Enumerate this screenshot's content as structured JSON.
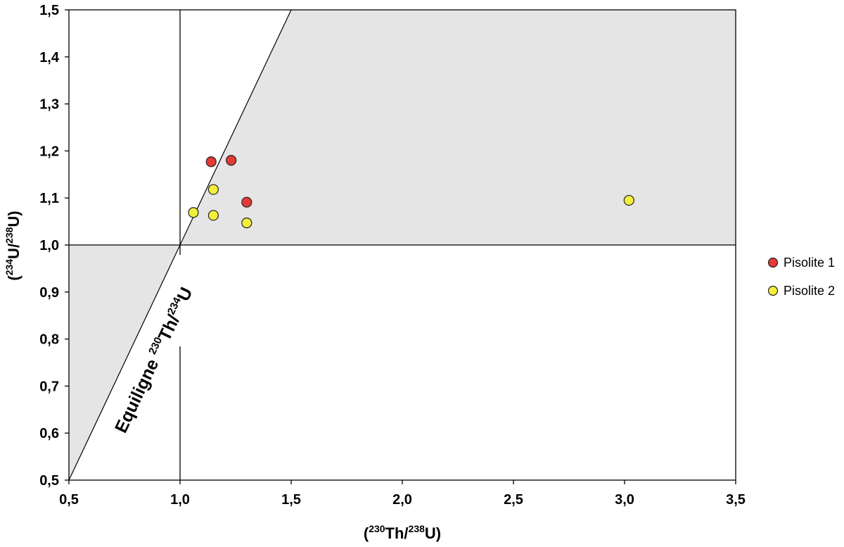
{
  "chart_data": {
    "type": "scatter",
    "xlim": [
      0.5,
      3.5
    ],
    "ylim": [
      0.5,
      1.5
    ],
    "x_ticks": [
      0.5,
      1.0,
      1.5,
      2.0,
      2.5,
      3.0,
      3.5
    ],
    "y_ticks": [
      0.5,
      0.6,
      0.7,
      0.8,
      0.9,
      1.0,
      1.1,
      1.2,
      1.3,
      1.4,
      1.5
    ],
    "x_tick_labels": [
      "0,5",
      "1,0",
      "1,5",
      "2,0",
      "2,5",
      "3,0",
      "3,5"
    ],
    "y_tick_labels": [
      "0,5",
      "0,6",
      "0,7",
      "0,8",
      "0,9",
      "1,0",
      "1,1",
      "1,2",
      "1,3",
      "1,4",
      "1,5"
    ],
    "xlabel": {
      "open": "(",
      "sup1": "230",
      "mid": "Th/",
      "sup2": "238",
      "close": "U)"
    },
    "ylabel": {
      "open": "(",
      "sup1": "234",
      "mid": "U/",
      "sup2": "238",
      "close": "U)"
    },
    "grid": false,
    "legend_position": "right",
    "shaded_regions_color": "#e5e5e5",
    "reference_lines": {
      "x": 1.0,
      "y": 1.0,
      "equiline_slope": 1
    },
    "annotation": {
      "pre": "Equiligne ",
      "sup1": "230",
      "mid": "Th/",
      "sup2": "234",
      "post": "U"
    },
    "series": [
      {
        "name": "Pisolite 1",
        "color": "#e23b34",
        "points": [
          {
            "x": 1.14,
            "y": 1.177
          },
          {
            "x": 1.23,
            "y": 1.18
          },
          {
            "x": 1.3,
            "y": 1.091
          }
        ]
      },
      {
        "name": "Pisolite 2",
        "color": "#f2ee3c",
        "points": [
          {
            "x": 1.06,
            "y": 1.069
          },
          {
            "x": 1.15,
            "y": 1.118
          },
          {
            "x": 1.15,
            "y": 1.063
          },
          {
            "x": 1.3,
            "y": 1.047
          },
          {
            "x": 3.02,
            "y": 1.095
          }
        ]
      }
    ]
  }
}
